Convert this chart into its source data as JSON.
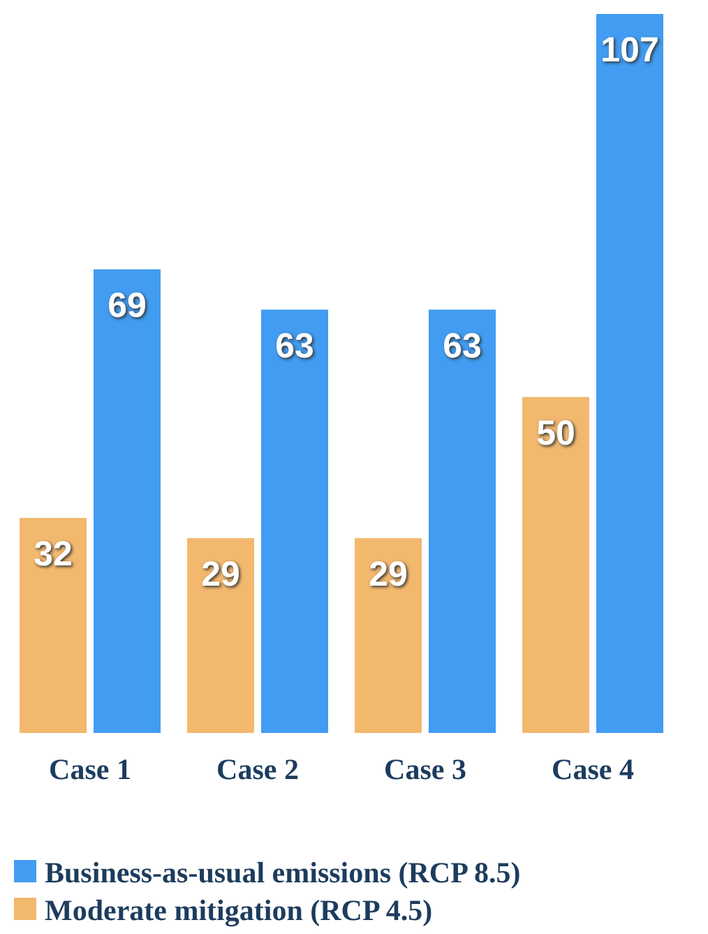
{
  "chart_data": {
    "type": "bar",
    "categories": [
      "Case 1",
      "Case 2",
      "Case 3",
      "Case 4"
    ],
    "series": [
      {
        "name": "Moderate mitigation (RCP 4.5)",
        "color": "#f2b86e",
        "values": [
          32,
          29,
          29,
          50
        ]
      },
      {
        "name": "Business-as-usual emissions (RCP 8.5)",
        "color": "#419cf2",
        "values": [
          69,
          63,
          63,
          107
        ]
      }
    ],
    "data_labels": true,
    "legend": "bottom"
  }
}
